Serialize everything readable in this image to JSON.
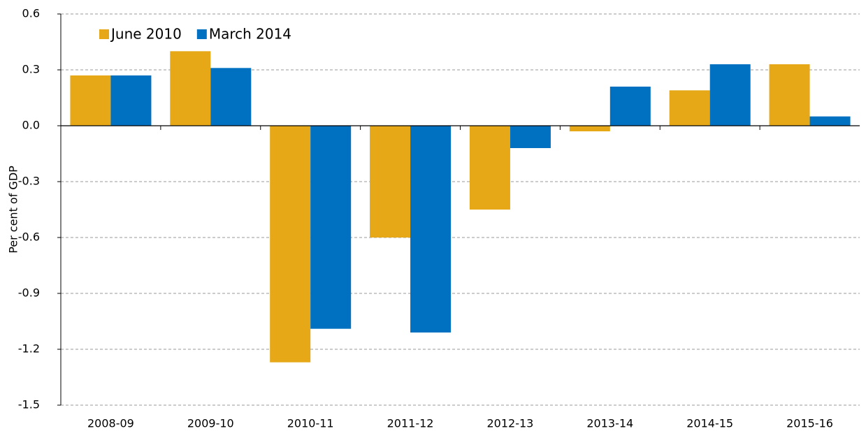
{
  "chart_data": {
    "type": "bar",
    "y_label": "Per cent of GDP",
    "categories": [
      "2008-09",
      "2009-10",
      "2010-11",
      "2011-12",
      "2012-13",
      "2013-14",
      "2014-15",
      "2015-16"
    ],
    "series": [
      {
        "name": "June 2010",
        "color": "#e6a817",
        "values": [
          0.27,
          0.4,
          -1.27,
          -0.6,
          -0.45,
          -0.03,
          0.19,
          0.33
        ]
      },
      {
        "name": "March 2014",
        "color": "#0070c0",
        "values": [
          0.27,
          0.31,
          -1.09,
          -1.11,
          -0.12,
          0.21,
          0.33,
          0.05
        ]
      }
    ],
    "ylim": [
      -1.5,
      0.6
    ],
    "yticks": [
      -1.5,
      -1.2,
      -0.9,
      -0.6,
      -0.3,
      {
        "value": 0,
        "label": "0.0"
      },
      0.3,
      0.6
    ],
    "grid": true,
    "legend": "top-left"
  }
}
